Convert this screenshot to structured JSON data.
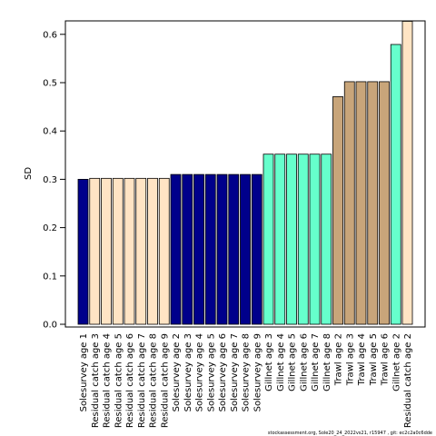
{
  "footer_text": "stockassessment.org, Sole20_24_2022vs21, r15947 , git: ec2c2a0c6dde",
  "colors": {
    "Solesurvey": "#00008B",
    "Residual catch": "#FFE4C4",
    "Gillnet": "#66FFCC",
    "Trawl": "#C8A57A"
  },
  "chart_data": {
    "type": "bar",
    "title": "",
    "xlabel": "",
    "ylabel": "SD",
    "ylim": [
      0,
      0.63
    ],
    "yticks": [
      "0.0",
      "0.1",
      "0.2",
      "0.3",
      "0.4",
      "0.5",
      "0.6"
    ],
    "grid": false,
    "categories": [
      "Solesurvey age 1",
      "Residual catch age 3",
      "Residual catch age 4",
      "Residual catch age 5",
      "Residual catch age 6",
      "Residual catch age 7",
      "Residual catch age 8",
      "Residual catch age 9",
      "Solesurvey age 2",
      "Solesurvey age 3",
      "Solesurvey age 4",
      "Solesurvey age 5",
      "Solesurvey age 6",
      "Solesurvey age 7",
      "Solesurvey age 8",
      "Solesurvey age 9",
      "Gillnet age 3",
      "Gillnet age 4",
      "Gillnet age 5",
      "Gillnet age 6",
      "Gillnet age 7",
      "Gillnet age 8",
      "Trawl age 2",
      "Trawl age 3",
      "Trawl age 4",
      "Trawl age 5",
      "Trawl age 6",
      "Gillnet age 2",
      "Residual catch age 2"
    ],
    "groups": [
      "Solesurvey",
      "Residual catch",
      "Residual catch",
      "Residual catch",
      "Residual catch",
      "Residual catch",
      "Residual catch",
      "Residual catch",
      "Solesurvey",
      "Solesurvey",
      "Solesurvey",
      "Solesurvey",
      "Solesurvey",
      "Solesurvey",
      "Solesurvey",
      "Solesurvey",
      "Gillnet",
      "Gillnet",
      "Gillnet",
      "Gillnet",
      "Gillnet",
      "Gillnet",
      "Trawl",
      "Trawl",
      "Trawl",
      "Trawl",
      "Trawl",
      "Gillnet",
      "Residual catch"
    ],
    "values": [
      0.3,
      0.302,
      0.302,
      0.302,
      0.302,
      0.302,
      0.302,
      0.302,
      0.31,
      0.31,
      0.31,
      0.31,
      0.31,
      0.31,
      0.31,
      0.31,
      0.352,
      0.352,
      0.352,
      0.352,
      0.352,
      0.352,
      0.471,
      0.502,
      0.502,
      0.502,
      0.502,
      0.579,
      0.627
    ]
  }
}
